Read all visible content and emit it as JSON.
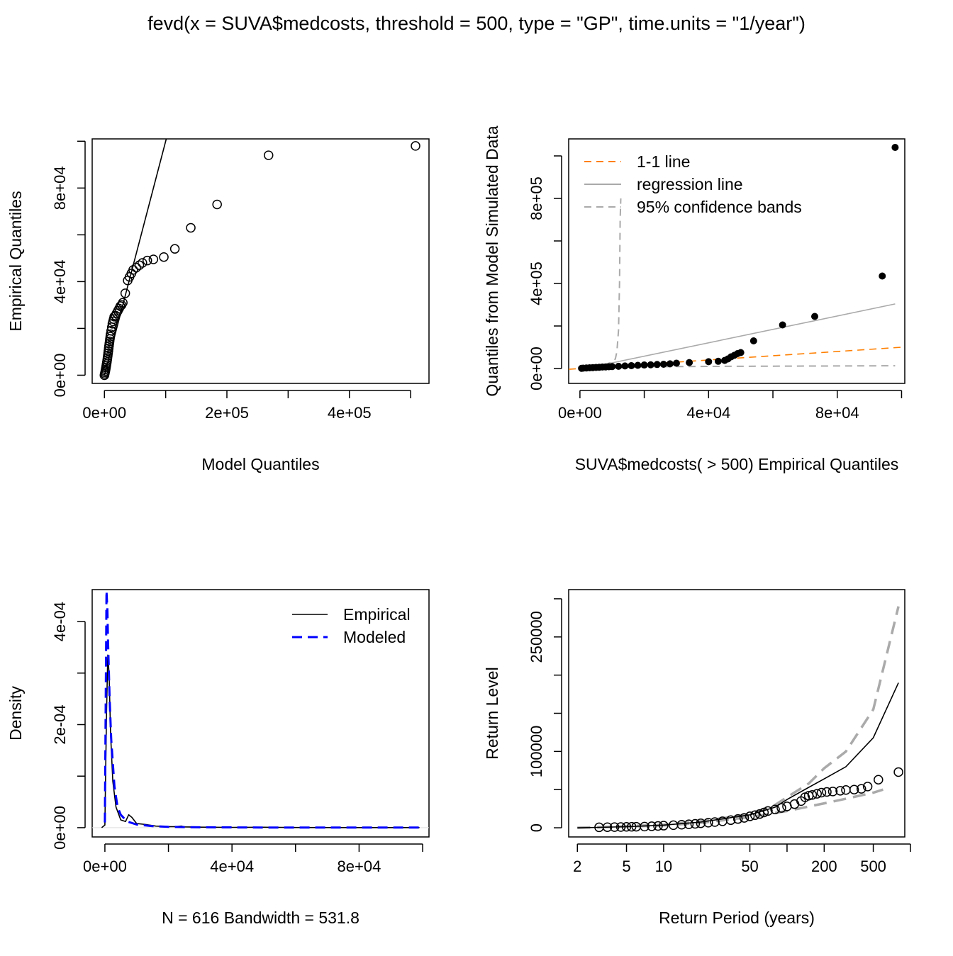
{
  "figure_title": "fevd(x = SUVA$medcosts, threshold = 500, type = \"GP\", time.units = \"1/year\")",
  "chart_data": [
    {
      "id": "qq",
      "type": "scatter",
      "xlabel": "Model Quantiles",
      "ylabel": "Empirical Quantiles",
      "xlim": [
        -20000,
        530000
      ],
      "ylim": [
        -3500,
        101000
      ],
      "xticks": [
        0,
        100000,
        200000,
        300000,
        400000,
        500000
      ],
      "xtick_labels": [
        "0e+00",
        "",
        "2e+05",
        "",
        "4e+05",
        ""
      ],
      "yticks": [
        0,
        20000,
        40000,
        60000,
        80000,
        100000
      ],
      "ytick_labels": [
        "0e+00",
        "",
        "4e+04",
        "",
        "8e+04",
        ""
      ],
      "reference_line": {
        "name": "1-1 line",
        "slope": 1,
        "intercept": 0
      },
      "points": [
        [
          0,
          0
        ],
        [
          500,
          600
        ],
        [
          1000,
          1200
        ],
        [
          1500,
          1800
        ],
        [
          2000,
          2500
        ],
        [
          2500,
          3200
        ],
        [
          3000,
          4000
        ],
        [
          3500,
          4800
        ],
        [
          4000,
          5600
        ],
        [
          4500,
          6500
        ],
        [
          5000,
          7400
        ],
        [
          5500,
          8400
        ],
        [
          6000,
          9400
        ],
        [
          6500,
          10400
        ],
        [
          7000,
          11500
        ],
        [
          7500,
          12500
        ],
        [
          8000,
          13500
        ],
        [
          8500,
          14500
        ],
        [
          9000,
          15500
        ],
        [
          9500,
          16500
        ],
        [
          10000,
          17500
        ],
        [
          11000,
          19000
        ],
        [
          12000,
          20500
        ],
        [
          13000,
          22000
        ],
        [
          14000,
          23000
        ],
        [
          15000,
          24000
        ],
        [
          16000,
          25000
        ],
        [
          18000,
          25500
        ],
        [
          20000,
          26500
        ],
        [
          22000,
          27500
        ],
        [
          24000,
          28500
        ],
        [
          26000,
          29500
        ],
        [
          28000,
          30000
        ],
        [
          30000,
          31000
        ],
        [
          34000,
          35000
        ],
        [
          38000,
          40500
        ],
        [
          41000,
          42000
        ],
        [
          44000,
          43500
        ],
        [
          47000,
          45000
        ],
        [
          52000,
          46000
        ],
        [
          57000,
          47000
        ],
        [
          62000,
          48000
        ],
        [
          70000,
          49000
        ],
        [
          80000,
          49500
        ],
        [
          97000,
          50500
        ],
        [
          115000,
          54000
        ],
        [
          141000,
          63000
        ],
        [
          184000,
          73000
        ],
        [
          268000,
          94000
        ],
        [
          508000,
          98000
        ]
      ]
    },
    {
      "id": "qqsim",
      "type": "scatter",
      "xlabel": "SUVA$medcosts( > 500) Empirical Quantiles",
      "ylabel": "Quantiles from Model Simulated Data",
      "xlim": [
        -3500,
        101000
      ],
      "ylim": [
        -70000,
        1080000
      ],
      "xticks": [
        0,
        20000,
        40000,
        60000,
        80000,
        100000
      ],
      "xtick_labels": [
        "0e+00",
        "",
        "4e+04",
        "",
        "8e+04",
        ""
      ],
      "yticks": [
        0,
        200000,
        400000,
        600000,
        800000,
        1000000
      ],
      "ytick_labels": [
        "0e+00",
        "",
        "4e+05",
        "",
        "8e+05",
        ""
      ],
      "legend": {
        "position": "top-left",
        "entries": [
          "1-1 line",
          "regression line",
          "95% confidence bands"
        ]
      },
      "one_to_one": {
        "slope": 1,
        "intercept": 0
      },
      "regression": {
        "slope": 3.15,
        "intercept": -5000
      },
      "upper_band": [
        [
          0,
          0
        ],
        [
          4000,
          8000
        ],
        [
          8000,
          20000
        ],
        [
          10000,
          30000
        ],
        [
          11000,
          45000
        ],
        [
          11500,
          80000
        ],
        [
          12000,
          180000
        ],
        [
          12300,
          400000
        ],
        [
          12500,
          700000
        ],
        [
          12700,
          800000
        ]
      ],
      "lower_band": [
        [
          0,
          0
        ],
        [
          10000,
          5000
        ],
        [
          20000,
          8000
        ],
        [
          40000,
          10000
        ],
        [
          60000,
          11000
        ],
        [
          80000,
          12000
        ],
        [
          98000,
          13000
        ]
      ],
      "points": [
        [
          500,
          800
        ],
        [
          1000,
          1500
        ],
        [
          2000,
          2500
        ],
        [
          3000,
          3500
        ],
        [
          4000,
          4200
        ],
        [
          5000,
          5000
        ],
        [
          6000,
          6000
        ],
        [
          7000,
          7000
        ],
        [
          8000,
          7500
        ],
        [
          9000,
          8200
        ],
        [
          10000,
          9000
        ],
        [
          12000,
          10500
        ],
        [
          14000,
          12000
        ],
        [
          16000,
          13500
        ],
        [
          18000,
          15000
        ],
        [
          20000,
          16500
        ],
        [
          22000,
          17500
        ],
        [
          24000,
          19000
        ],
        [
          26000,
          20000
        ],
        [
          28000,
          22000
        ],
        [
          30000,
          25000
        ],
        [
          34000,
          28000
        ],
        [
          40000,
          32000
        ],
        [
          43000,
          34000
        ],
        [
          45000,
          38000
        ],
        [
          46000,
          45000
        ],
        [
          47000,
          55000
        ],
        [
          48000,
          62000
        ],
        [
          49000,
          70000
        ],
        [
          50000,
          75000
        ],
        [
          54000,
          130000
        ],
        [
          63000,
          205000
        ],
        [
          73000,
          245000
        ],
        [
          94000,
          435000
        ],
        [
          98000,
          1040000
        ]
      ]
    },
    {
      "id": "density",
      "type": "line",
      "xlabel": "N = 616   Bandwidth = 531.8",
      "ylabel": "Density",
      "xlim": [
        -4000,
        102000
      ],
      "ylim": [
        -1.8e-05,
        0.000462
      ],
      "xticks": [
        0,
        20000,
        40000,
        60000,
        80000,
        100000
      ],
      "xtick_labels": [
        "0e+00",
        "",
        "4e+04",
        "",
        "8e+04",
        ""
      ],
      "yticks": [
        0,
        0.0001,
        0.0002,
        0.0003,
        0.0004
      ],
      "ytick_labels": [
        "0e+00",
        "",
        "2e-04",
        "",
        "4e-04"
      ],
      "legend": {
        "position": "top-right",
        "entries": [
          "Empirical",
          "Modeled"
        ]
      },
      "series": [
        {
          "name": "Empirical",
          "color": "#000000",
          "dash": "solid",
          "points": [
            [
              -1000,
              0
            ],
            [
              0,
              5e-06
            ],
            [
              500,
              0.00022
            ],
            [
              900,
              0.000335
            ],
            [
              1300,
              0.0003
            ],
            [
              1800,
              0.00018
            ],
            [
              2500,
              9e-05
            ],
            [
              3500,
              4e-05
            ],
            [
              5000,
              1.5e-05
            ],
            [
              6500,
              1.2e-05
            ],
            [
              7500,
              2.5e-05
            ],
            [
              8500,
              2e-05
            ],
            [
              10000,
              8e-06
            ],
            [
              13000,
              6e-06
            ],
            [
              16000,
              3e-06
            ],
            [
              20000,
              2e-06
            ],
            [
              22000,
              2e-06
            ],
            [
              24000,
              3e-06
            ],
            [
              25000,
              1.5e-06
            ],
            [
              30000,
              1e-06
            ],
            [
              40000,
              5e-07
            ],
            [
              50000,
              8e-07
            ],
            [
              60000,
              3e-07
            ],
            [
              80000,
              2e-07
            ],
            [
              99000,
              1e-07
            ]
          ]
        },
        {
          "name": "Modeled",
          "color": "#0000ff",
          "dash": "dashed",
          "points": [
            [
              0,
              1e-05
            ],
            [
              500,
              0.00046
            ],
            [
              800,
              0.00042
            ],
            [
              1000,
              0.00036
            ],
            [
              1500,
              0.00025
            ],
            [
              2000,
              0.00017
            ],
            [
              3000,
              8e-05
            ],
            [
              4000,
              4e-05
            ],
            [
              5000,
              2.5e-05
            ],
            [
              7000,
              1.2e-05
            ],
            [
              10000,
              6e-06
            ],
            [
              15000,
              3e-06
            ],
            [
              20000,
              1.5e-06
            ],
            [
              30000,
              7e-07
            ],
            [
              50000,
              3e-07
            ],
            [
              70000,
              2e-07
            ],
            [
              99000,
              1e-07
            ]
          ]
        }
      ]
    },
    {
      "id": "return",
      "type": "line",
      "xlabel": "Return Period (years)",
      "ylabel": "Return Level",
      "x_scale": "log",
      "xlim": [
        1.7,
        900
      ],
      "ylim": [
        -12000,
        312000
      ],
      "xticks": [
        2,
        5,
        10,
        20,
        50,
        100,
        200,
        500,
        1000
      ],
      "xtick_labels": [
        "2",
        "5",
        "10",
        "",
        "50",
        "",
        "200",
        "500",
        ""
      ],
      "yticks": [
        0,
        50000,
        100000,
        150000,
        200000,
        250000,
        300000
      ],
      "ytick_labels": [
        "0",
        "",
        "100000",
        "",
        "",
        "250000",
        ""
      ],
      "estimate": [
        [
          2,
          0
        ],
        [
          3,
          500
        ],
        [
          5,
          1500
        ],
        [
          10,
          3500
        ],
        [
          20,
          7500
        ],
        [
          50,
          17000
        ],
        [
          80,
          27000
        ],
        [
          100,
          37000
        ],
        [
          150,
          53000
        ],
        [
          200,
          64000
        ],
        [
          300,
          80000
        ],
        [
          500,
          118000
        ],
        [
          800,
          190000
        ]
      ],
      "upper_ci": [
        [
          2,
          0
        ],
        [
          5,
          2000
        ],
        [
          10,
          4000
        ],
        [
          20,
          8500
        ],
        [
          50,
          17500
        ],
        [
          80,
          30000
        ],
        [
          100,
          40000
        ],
        [
          150,
          58000
        ],
        [
          200,
          78000
        ],
        [
          300,
          100000
        ],
        [
          500,
          155000
        ],
        [
          800,
          290000
        ]
      ],
      "lower_ci": [
        [
          2,
          0
        ],
        [
          5,
          1500
        ],
        [
          10,
          3000
        ],
        [
          20,
          6500
        ],
        [
          50,
          14000
        ],
        [
          100,
          22000
        ],
        [
          200,
          32000
        ],
        [
          300,
          38000
        ],
        [
          500,
          46000
        ],
        [
          600,
          50000
        ]
      ],
      "points": [
        [
          3,
          600
        ],
        [
          3.5,
          800
        ],
        [
          4,
          900
        ],
        [
          4.5,
          1000
        ],
        [
          5,
          1200
        ],
        [
          5.5,
          1300
        ],
        [
          6,
          1400
        ],
        [
          7,
          1600
        ],
        [
          8,
          2000
        ],
        [
          9,
          2400
        ],
        [
          10,
          2800
        ],
        [
          12,
          3400
        ],
        [
          14,
          4000
        ],
        [
          16,
          4600
        ],
        [
          18,
          5200
        ],
        [
          20,
          5900
        ],
        [
          23,
          6700
        ],
        [
          26,
          7500
        ],
        [
          30,
          8500
        ],
        [
          35,
          10000
        ],
        [
          40,
          11500
        ],
        [
          45,
          13000
        ],
        [
          50,
          15000
        ],
        [
          55,
          16500
        ],
        [
          60,
          18000
        ],
        [
          65,
          20000
        ],
        [
          70,
          22000
        ],
        [
          80,
          24000
        ],
        [
          90,
          26000
        ],
        [
          100,
          28000
        ],
        [
          115,
          31000
        ],
        [
          130,
          35000
        ],
        [
          140,
          40000
        ],
        [
          150,
          42000
        ],
        [
          160,
          43000
        ],
        [
          175,
          44500
        ],
        [
          190,
          46000
        ],
        [
          210,
          47000
        ],
        [
          235,
          47500
        ],
        [
          270,
          48500
        ],
        [
          300,
          49500
        ],
        [
          350,
          50000
        ],
        [
          400,
          51000
        ],
        [
          450,
          54000
        ],
        [
          550,
          63000
        ],
        [
          800,
          73000
        ]
      ]
    }
  ]
}
